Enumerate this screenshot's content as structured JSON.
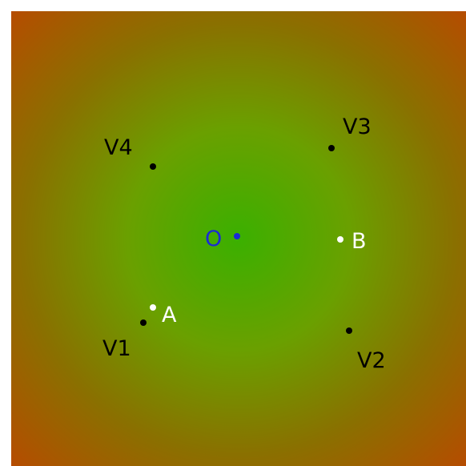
{
  "colors": {
    "center_green": "#3bb000",
    "mid_green": "#6aa000",
    "edge_olive": "#8a7000",
    "corner_orange": "#b84a00",
    "background": "#ffffff",
    "vertex": "#000000",
    "special_point": "#ffffff",
    "origin": "#1a2ad6"
  },
  "points": {
    "origin": {
      "label": "O",
      "color": "#1a2ad6"
    },
    "v1": {
      "label": "V1",
      "color": "#000000"
    },
    "v2": {
      "label": "V2",
      "color": "#000000"
    },
    "v3": {
      "label": "V3",
      "color": "#000000"
    },
    "v4": {
      "label": "V4",
      "color": "#000000"
    },
    "a": {
      "label": "A",
      "color": "#ffffff"
    },
    "b": {
      "label": "B",
      "color": "#ffffff"
    }
  }
}
